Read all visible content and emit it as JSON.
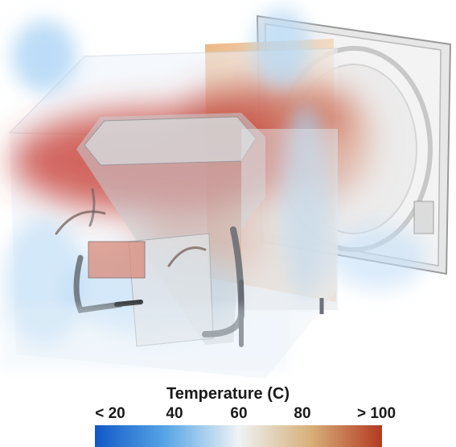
{
  "legend": {
    "title": "Temperature (C)",
    "ticks": [
      "< 20",
      "40",
      "60",
      "80",
      "> 100"
    ],
    "stops": [
      "#1158c7",
      "#5aa6e6",
      "#eef3f6",
      "#d7b07a",
      "#b43a22"
    ]
  },
  "colors": {
    "hot": "#c0392b",
    "cold": "#a9d1f2",
    "panel": "#e9b07a",
    "metal": "#7f858c"
  }
}
